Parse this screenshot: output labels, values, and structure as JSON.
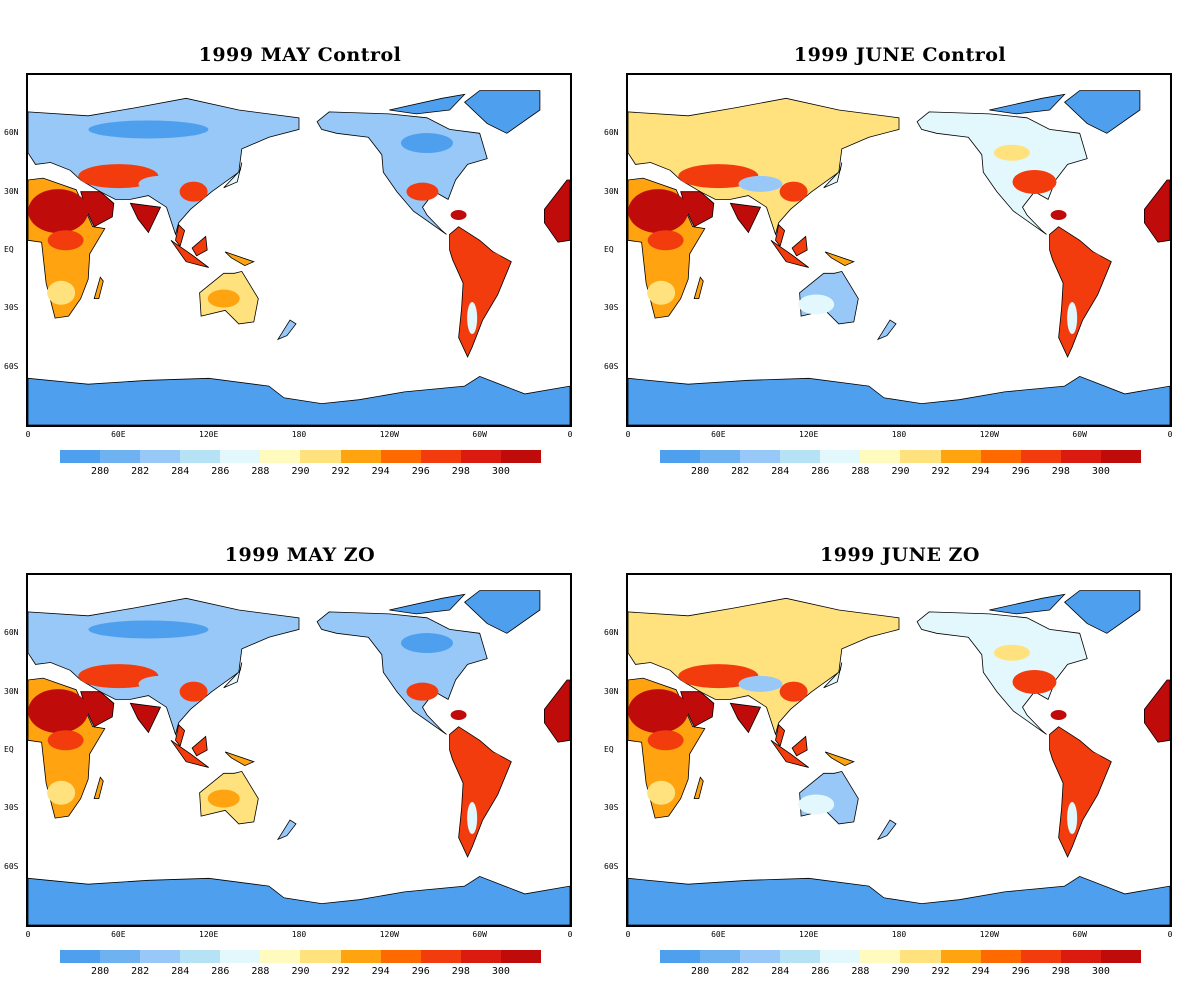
{
  "panels": [
    {
      "title": "1999 MAY Control"
    },
    {
      "title": "1999 JUNE Control"
    },
    {
      "title": "1999 MAY ZO"
    },
    {
      "title": "1999 JUNE ZO"
    }
  ],
  "axes": {
    "lat_labels": [
      "60N",
      "30N",
      "EQ",
      "30S",
      "60S"
    ],
    "lon_labels": [
      "0",
      "60E",
      "120E",
      "180",
      "120W",
      "60W",
      "0"
    ]
  },
  "colorbar": {
    "labels": [
      "280",
      "282",
      "284",
      "286",
      "288",
      "290",
      "292",
      "294",
      "296",
      "298",
      "300"
    ],
    "colors": [
      "#4ea0ee",
      "#6fb2f2",
      "#97c8f7",
      "#b5e3f5",
      "#e3f8fc",
      "#fffbbe",
      "#ffe27e",
      "#ffa410",
      "#ff6a00",
      "#f23c0d",
      "#db1a10",
      "#c00b0b"
    ]
  },
  "palette": {
    "ice": "#4ea0ee",
    "cold": "#97c8f7",
    "cool": "#e3f8fc",
    "mild": "#ffe27e",
    "warm": "#ffa410",
    "hot": "#f23c0d",
    "hottest": "#c00b0b"
  }
}
